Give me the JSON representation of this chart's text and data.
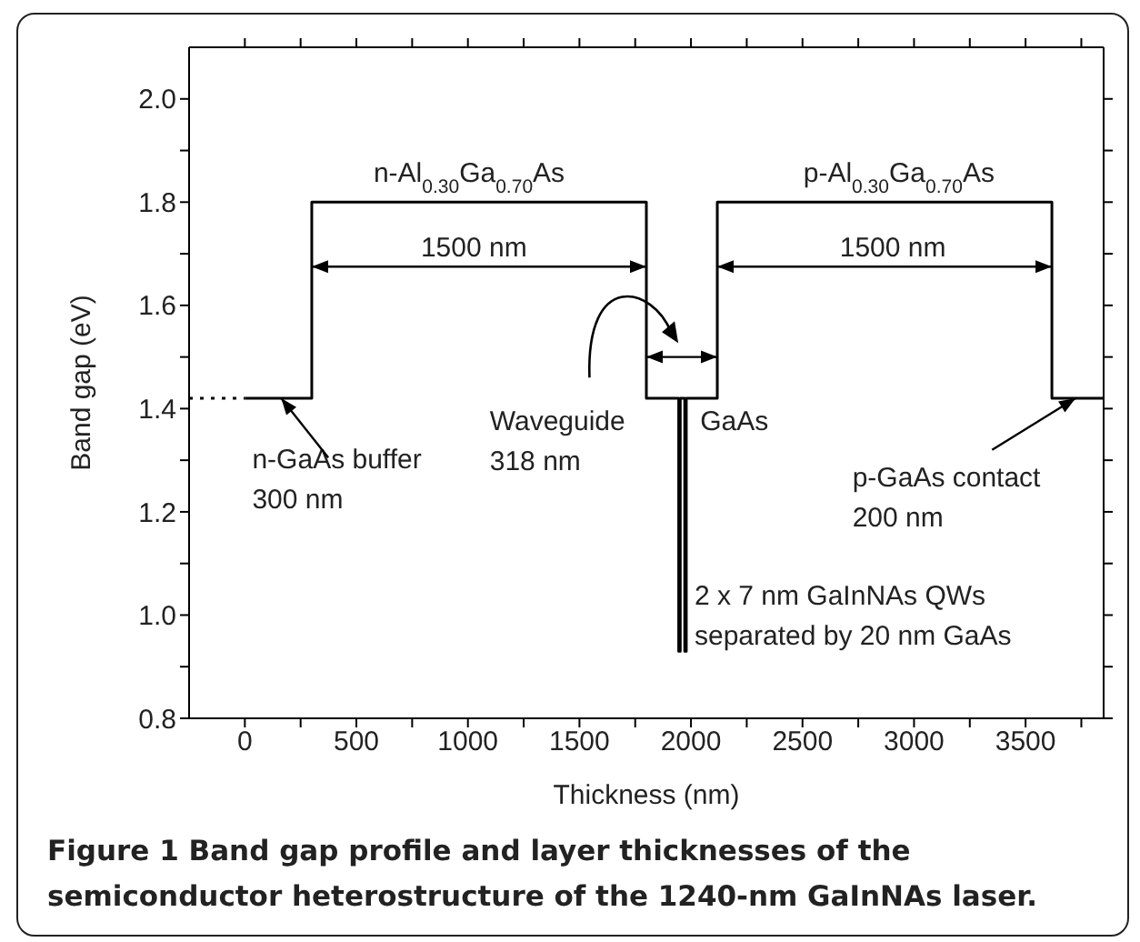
{
  "chart_data": {
    "type": "step",
    "xlabel": "Thickness (nm)",
    "ylabel": "Band gap (eV)",
    "series": [
      {
        "type": "line",
        "color": "#000000",
        "line_style": "dotted",
        "x": [
          -250,
          0
        ],
        "values": [
          1.42,
          1.42
        ]
      },
      {
        "color": "#000000",
        "line_style": "solid",
        "x": [
          0,
          300,
          1800,
          1945,
          1952,
          1972,
          1979,
          2118,
          3618,
          3850
        ],
        "values": [
          1.42,
          1.8,
          1.42,
          0.93,
          1.42,
          0.93,
          1.42,
          1.8,
          1.42,
          1.42
        ]
      }
    ],
    "xlim": [
      -250,
      3850
    ],
    "ylim": [
      0.8,
      2.1
    ],
    "xticks": [
      0,
      {
        "value": 250,
        "label": null
      },
      500,
      {
        "value": 750,
        "label": null
      },
      1000,
      {
        "value": 1250,
        "label": null
      },
      1500,
      {
        "value": 1750,
        "label": null
      },
      2000,
      {
        "value": 2250,
        "label": null
      },
      2500,
      {
        "value": 2750,
        "label": null
      },
      3000,
      {
        "value": 3250,
        "label": null
      },
      3500,
      {
        "value": 3750,
        "label": null
      }
    ],
    "yticks": [
      {
        "value": 0.8,
        "label": "0.8"
      },
      {
        "value": 0.9,
        "label": null
      },
      {
        "value": 1.0,
        "label": "1.0"
      },
      {
        "value": 1.1,
        "label": null
      },
      {
        "value": 1.2,
        "label": "1.2"
      },
      {
        "value": 1.3,
        "label": null
      },
      {
        "value": 1.4,
        "label": "1.4"
      },
      {
        "value": 1.5,
        "label": null
      },
      {
        "value": 1.6,
        "label": "1.6"
      },
      {
        "value": 1.7,
        "label": null
      },
      {
        "value": 1.8,
        "label": "1.8"
      },
      {
        "value": 1.9,
        "label": null
      },
      {
        "value": 2.0,
        "label": "2.0"
      }
    ],
    "marker": "none",
    "annotations": [
      "n-Al$_{0.30}$Ga$_{0.70}$As",
      "p-Al$_{0.30}$Ga$_{0.70}$As",
      "1500 nm",
      "1500 nm",
      "Waveguide\n318 nm",
      "GaAs",
      {
        "text": "n-GaAs buffer\n300 nm",
        "x": 163,
        "y": 1.42
      },
      {
        "text": "p-GaAs contact\n200 nm",
        "x": 3724,
        "y": 1.42
      },
      "2 x 7 nm GaInNAs QWs\nseparated by 20 nm GaAs",
      "Figure 1 Band gap profile and layer thicknesses of the semiconductor heterostructure of the 1240-nm GaInNAs laser."
    ]
  }
}
